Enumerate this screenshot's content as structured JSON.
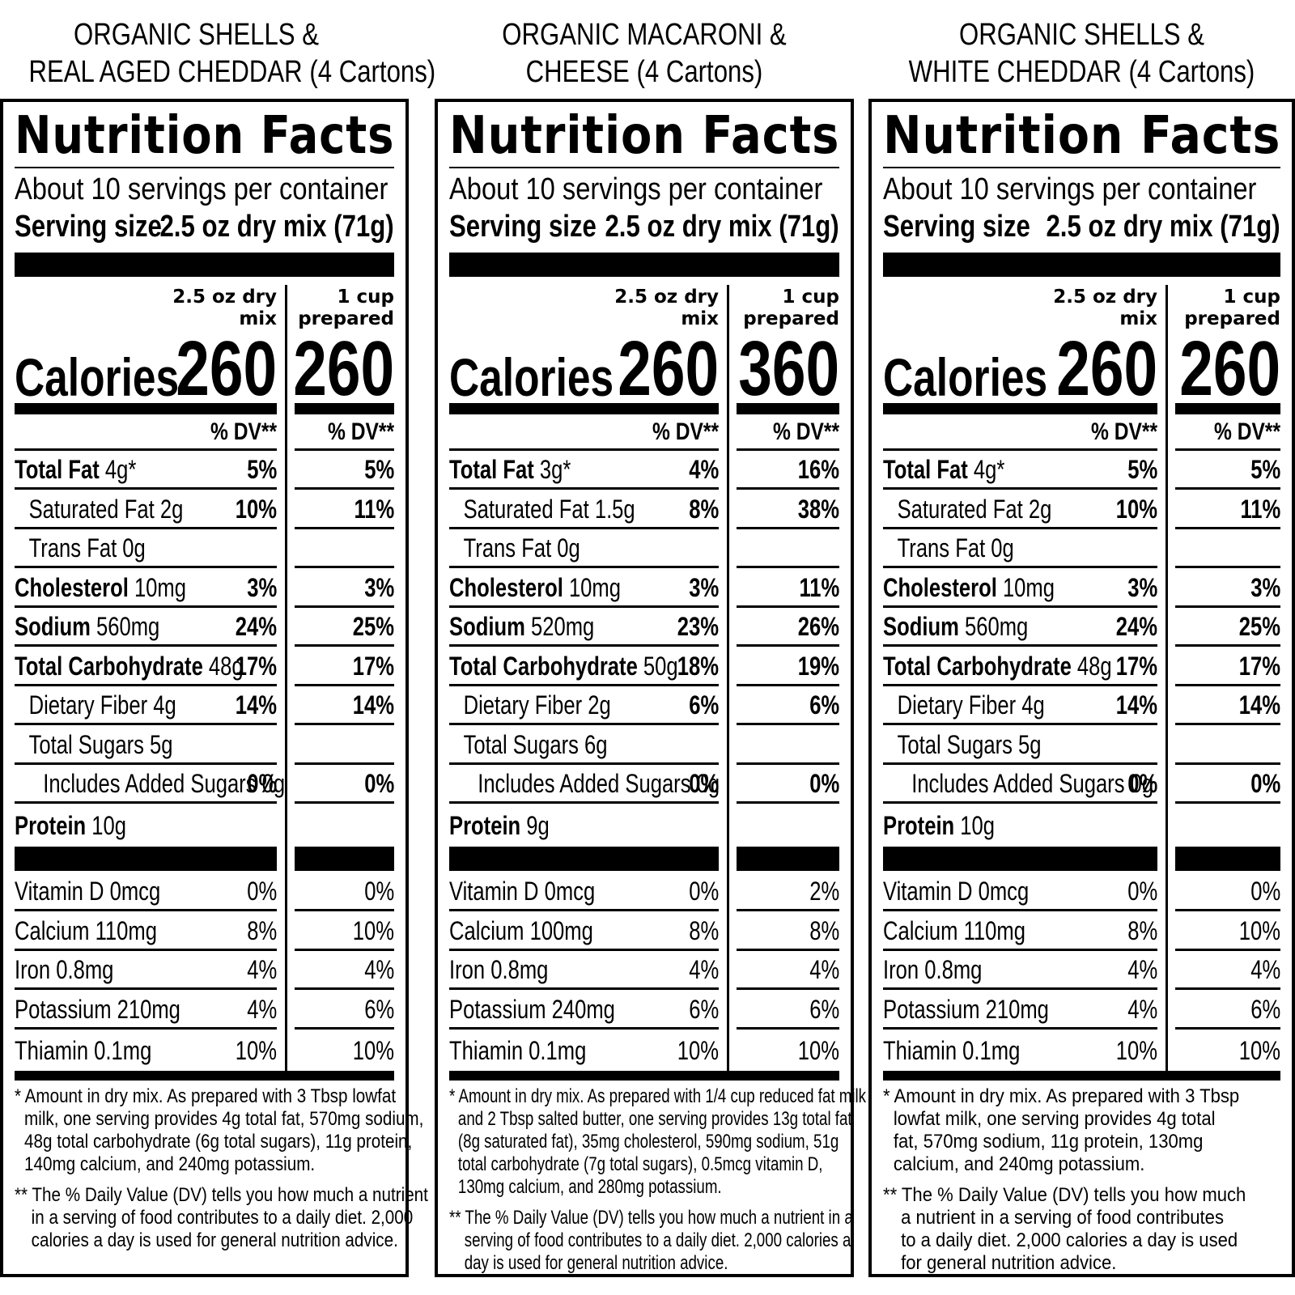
{
  "panels": [
    {
      "heading": [
        "ORGANIC SHELLS &",
        "REAL AGED CHEDDAR (4 Cartons)"
      ],
      "title": "Nutrition Facts",
      "servings": "About 10 servings per container",
      "serving_size_label": "Serving size",
      "serving_size_value": "2.5 oz dry mix (71g)",
      "col1_header": [
        "2.5 oz dry",
        "mix"
      ],
      "col2_header": [
        "1 cup",
        "prepared"
      ],
      "calories_label": "Calories",
      "calories_1": "260",
      "calories_2": "260",
      "dv_label": "% DV**",
      "nutrients": [
        {
          "bold": "Total Fat",
          "amount": "4g*",
          "dv1": "5%",
          "dv2": "5%",
          "indent": 0
        },
        {
          "bold": "",
          "amount": "Saturated Fat  2g",
          "dv1": "10%",
          "dv2": "11%",
          "indent": 1
        },
        {
          "bold": "",
          "amount": "Trans Fat  0g",
          "dv1": "",
          "dv2": "",
          "indent": 1
        },
        {
          "bold": "Cholesterol",
          "amount": "10mg",
          "dv1": "3%",
          "dv2": "3%",
          "indent": 0
        },
        {
          "bold": "Sodium",
          "amount": "560mg",
          "dv1": "24%",
          "dv2": "25%",
          "indent": 0
        },
        {
          "bold": "Total Carbohydrate",
          "amount": "48g",
          "dv1": "17%",
          "dv2": "17%",
          "indent": 0
        },
        {
          "bold": "",
          "amount": "Dietary Fiber  4g",
          "dv1": "14%",
          "dv2": "14%",
          "indent": 1
        },
        {
          "bold": "",
          "amount": "Total Sugars  5g",
          "dv1": "",
          "dv2": "",
          "indent": 1
        },
        {
          "bold": "",
          "amount": "Includes Added Sugars 0g",
          "dv1": "0%",
          "dv2": "0%",
          "indent": 2
        },
        {
          "bold": "Protein",
          "amount": "10g",
          "dv1": "",
          "dv2": "",
          "indent": 0
        }
      ],
      "vitamins": [
        {
          "name": "Vitamin D  0mcg",
          "dv1": "0%",
          "dv2": "0%"
        },
        {
          "name": "Calcium  110mg",
          "dv1": "8%",
          "dv2": "10%"
        },
        {
          "name": "Iron  0.8mg",
          "dv1": "4%",
          "dv2": "4%"
        },
        {
          "name": "Potassium  210mg",
          "dv1": "4%",
          "dv2": "6%"
        },
        {
          "name": "Thiamin  0.1mg",
          "dv1": "10%",
          "dv2": "10%"
        }
      ],
      "footnote1": [
        "* Amount in dry mix. As prepared with 3 Tbsp lowfat",
        "milk, one serving provides 4g total fat, 570mg sodium,",
        "48g total carbohydrate (6g total sugars), 11g protein,",
        "140mg calcium, and 240mg potassium."
      ],
      "footnote2": [
        "** The % Daily Value (DV) tells you how much a nutrient",
        "in a serving of food contributes to a daily diet. 2,000",
        "calories a day is used for general nutrition advice."
      ]
    },
    {
      "heading": [
        "ORGANIC MACARONI &",
        "CHEESE (4 Cartons)"
      ],
      "title": "Nutrition Facts",
      "servings": "About 10 servings per container",
      "serving_size_label": "Serving size",
      "serving_size_value": "2.5 oz dry mix (71g)",
      "col1_header": [
        "2.5 oz dry",
        "mix"
      ],
      "col2_header": [
        "1 cup",
        "prepared"
      ],
      "calories_label": "Calories",
      "calories_1": "260",
      "calories_2": "360",
      "dv_label": "% DV**",
      "nutrients": [
        {
          "bold": "Total Fat",
          "amount": "3g*",
          "dv1": "4%",
          "dv2": "16%",
          "indent": 0
        },
        {
          "bold": "",
          "amount": "Saturated Fat  1.5g",
          "dv1": "8%",
          "dv2": "38%",
          "indent": 1
        },
        {
          "bold": "",
          "amount": "Trans Fat  0g",
          "dv1": "",
          "dv2": "",
          "indent": 1
        },
        {
          "bold": "Cholesterol",
          "amount": "10mg",
          "dv1": "3%",
          "dv2": "11%",
          "indent": 0
        },
        {
          "bold": "Sodium",
          "amount": "520mg",
          "dv1": "23%",
          "dv2": "26%",
          "indent": 0
        },
        {
          "bold": "Total Carbohydrate",
          "amount": "50g",
          "dv1": "18%",
          "dv2": "19%",
          "indent": 0
        },
        {
          "bold": "",
          "amount": "Dietary Fiber  2g",
          "dv1": "6%",
          "dv2": "6%",
          "indent": 1
        },
        {
          "bold": "",
          "amount": "Total Sugars  6g",
          "dv1": "",
          "dv2": "",
          "indent": 1
        },
        {
          "bold": "",
          "amount": "Includes Added Sugars 0g",
          "dv1": "0%",
          "dv2": "0%",
          "indent": 2
        },
        {
          "bold": "Protein",
          "amount": "9g",
          "dv1": "",
          "dv2": "",
          "indent": 0
        }
      ],
      "vitamins": [
        {
          "name": "Vitamin D  0mcg",
          "dv1": "0%",
          "dv2": "2%"
        },
        {
          "name": "Calcium  100mg",
          "dv1": "8%",
          "dv2": "8%"
        },
        {
          "name": "Iron  0.8mg",
          "dv1": "4%",
          "dv2": "4%"
        },
        {
          "name": "Potassium  240mg",
          "dv1": "6%",
          "dv2": "6%"
        },
        {
          "name": "Thiamin  0.1mg",
          "dv1": "10%",
          "dv2": "10%"
        }
      ],
      "footnote1": [
        "* Amount in dry mix. As prepared with 1/4 cup reduced fat milk",
        "and 2 Tbsp salted butter, one serving provides 13g total fat",
        "(8g saturated fat), 35mg cholesterol, 590mg sodium, 51g",
        "total carbohydrate (7g total sugars), 0.5mcg vitamin D,",
        "130mg calcium, and 280mg potassium."
      ],
      "footnote2": [
        "** The % Daily Value (DV) tells you how much a nutrient in a",
        "serving of food contributes to a daily diet. 2,000 calories a",
        "day is used for general nutrition advice."
      ]
    },
    {
      "heading": [
        "ORGANIC SHELLS &",
        "WHITE CHEDDAR (4 Cartons)"
      ],
      "title": "Nutrition Facts",
      "servings": "About 10 servings per container",
      "serving_size_label": "Serving size",
      "serving_size_value": "2.5 oz dry mix (71g)",
      "col1_header": [
        "2.5 oz dry",
        "mix"
      ],
      "col2_header": [
        "1 cup",
        "prepared"
      ],
      "calories_label": "Calories",
      "calories_1": "260",
      "calories_2": "260",
      "dv_label": "% DV**",
      "nutrients": [
        {
          "bold": "Total Fat",
          "amount": "4g*",
          "dv1": "5%",
          "dv2": "5%",
          "indent": 0
        },
        {
          "bold": "",
          "amount": "Saturated Fat  2g",
          "dv1": "10%",
          "dv2": "11%",
          "indent": 1
        },
        {
          "bold": "",
          "amount": "Trans Fat  0g",
          "dv1": "",
          "dv2": "",
          "indent": 1
        },
        {
          "bold": "Cholesterol",
          "amount": "10mg",
          "dv1": "3%",
          "dv2": "3%",
          "indent": 0
        },
        {
          "bold": "Sodium",
          "amount": "560mg",
          "dv1": "24%",
          "dv2": "25%",
          "indent": 0
        },
        {
          "bold": "Total Carbohydrate",
          "amount": "48g",
          "dv1": "17%",
          "dv2": "17%",
          "indent": 0
        },
        {
          "bold": "",
          "amount": "Dietary Fiber  4g",
          "dv1": "14%",
          "dv2": "14%",
          "indent": 1
        },
        {
          "bold": "",
          "amount": "Total Sugars  5g",
          "dv1": "",
          "dv2": "",
          "indent": 1
        },
        {
          "bold": "",
          "amount": "Includes Added Sugars 0g",
          "dv1": "0%",
          "dv2": "0%",
          "indent": 2
        },
        {
          "bold": "Protein",
          "amount": "10g",
          "dv1": "",
          "dv2": "",
          "indent": 0
        }
      ],
      "vitamins": [
        {
          "name": "Vitamin D  0mcg",
          "dv1": "0%",
          "dv2": "0%"
        },
        {
          "name": "Calcium  110mg",
          "dv1": "8%",
          "dv2": "10%"
        },
        {
          "name": "Iron  0.8mg",
          "dv1": "4%",
          "dv2": "4%"
        },
        {
          "name": "Potassium  210mg",
          "dv1": "4%",
          "dv2": "6%"
        },
        {
          "name": "Thiamin  0.1mg",
          "dv1": "10%",
          "dv2": "10%"
        }
      ],
      "footnote1": [
        "* Amount in dry mix. As prepared with 3 Tbsp",
        "lowfat milk, one serving provides 4g total",
        "fat, 570mg sodium, 11g protein, 130mg",
        "calcium, and 240mg potassium."
      ],
      "footnote2": [
        "** The % Daily Value (DV) tells you how much",
        "a nutrient in a serving of food contributes",
        "to a daily diet. 2,000 calories a day is used",
        "for general nutrition advice."
      ]
    }
  ]
}
